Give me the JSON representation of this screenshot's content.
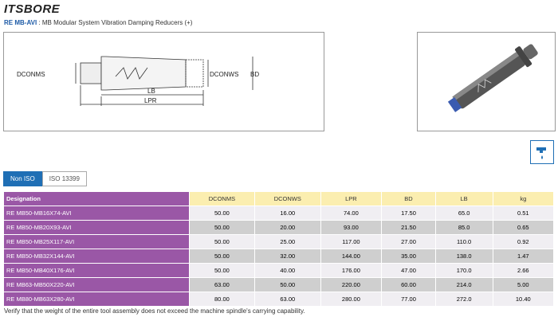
{
  "header": {
    "logo": "ITSBORE",
    "code": "RE MB-AVI",
    "subtitle": " : MB Modular System Vibration Damping Reducers",
    "plus": "(+)"
  },
  "drawing": {
    "labels": {
      "dconms": "DCONMS",
      "dconws": "DCONWS",
      "bd": "BD",
      "lb": "LB",
      "lpr": "LPR"
    }
  },
  "tabs": [
    "Non ISO",
    "ISO 13399"
  ],
  "table": {
    "headers": [
      "Designation",
      "DCONMS",
      "DCONWS",
      "LPR",
      "BD",
      "LB",
      "kg"
    ],
    "rows": [
      [
        "RE MB50-MB16X74-AVI",
        "50.00",
        "16.00",
        "74.00",
        "17.50",
        "65.0",
        "0.51"
      ],
      [
        "RE MB50-MB20X93-AVI",
        "50.00",
        "20.00",
        "93.00",
        "21.50",
        "85.0",
        "0.65"
      ],
      [
        "RE MB50-MB25X117-AVI",
        "50.00",
        "25.00",
        "117.00",
        "27.00",
        "110.0",
        "0.92"
      ],
      [
        "RE MB50-MB32X144-AVI",
        "50.00",
        "32.00",
        "144.00",
        "35.00",
        "138.0",
        "1.47"
      ],
      [
        "RE MB50-MB40X176-AVI",
        "50.00",
        "40.00",
        "176.00",
        "47.00",
        "170.0",
        "2.66"
      ],
      [
        "RE MB63-MB50X220-AVI",
        "63.00",
        "50.00",
        "220.00",
        "60.00",
        "214.0",
        "5.00"
      ],
      [
        "RE MB80-MB63X280-AVI",
        "80.00",
        "63.00",
        "280.00",
        "77.00",
        "272.0",
        "10.40"
      ]
    ]
  },
  "footnote": "Verify that the weight of the entire tool assembly does not exceed the machine spindle's carrying capability."
}
